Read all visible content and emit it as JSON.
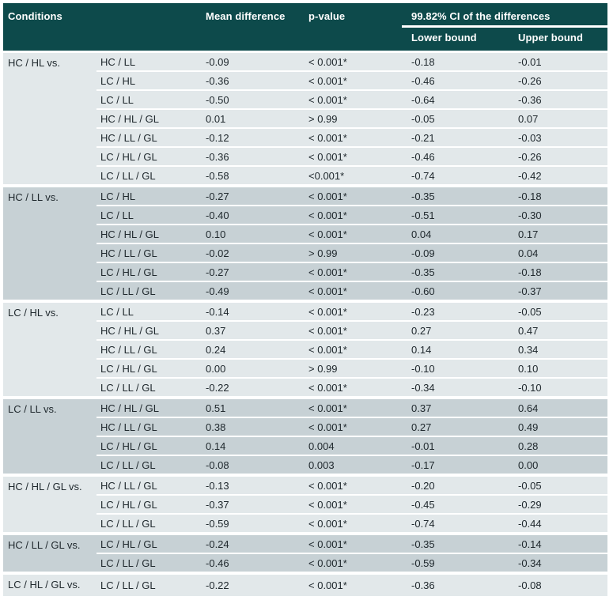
{
  "table": {
    "colors": {
      "header_bg": "#0d4a4b",
      "header_text": "#ffffff",
      "row_light": "#e2e8ea",
      "row_dark": "#c7d1d5",
      "body_text": "#20292e",
      "separator": "#ffffff"
    },
    "header": {
      "conditions": "Conditions",
      "mean_difference": "Mean difference",
      "p_value": "p-value",
      "ci_title": "99.82% CI of the differences",
      "lower_bound": "Lower bound",
      "upper_bound": "Upper bound"
    },
    "groups": [
      {
        "label": "HC / HL vs.",
        "rows": [
          {
            "condition": "HC / LL",
            "mean_difference": "-0.09",
            "p_value": "< 0.001*",
            "lower": "-0.18",
            "upper": "-0.01"
          },
          {
            "condition": "LC / HL",
            "mean_difference": "-0.36",
            "p_value": "< 0.001*",
            "lower": "-0.46",
            "upper": "-0.26"
          },
          {
            "condition": "LC / LL",
            "mean_difference": "-0.50",
            "p_value": "< 0.001*",
            "lower": "-0.64",
            "upper": "-0.36"
          },
          {
            "condition": "HC / HL / GL",
            "mean_difference": "0.01",
            "p_value": "> 0.99",
            "lower": "-0.05",
            "upper": "0.07"
          },
          {
            "condition": "HC / LL / GL",
            "mean_difference": "-0.12",
            "p_value": "< 0.001*",
            "lower": "-0.21",
            "upper": "-0.03"
          },
          {
            "condition": "LC / HL / GL",
            "mean_difference": "-0.36",
            "p_value": "< 0.001*",
            "lower": "-0.46",
            "upper": "-0.26"
          },
          {
            "condition": "LC / LL / GL",
            "mean_difference": "-0.58",
            "p_value": "<0.001*",
            "lower": "-0.74",
            "upper": "-0.42"
          }
        ]
      },
      {
        "label": "HC / LL vs.",
        "rows": [
          {
            "condition": "LC / HL",
            "mean_difference": "-0.27",
            "p_value": "< 0.001*",
            "lower": "-0.35",
            "upper": "-0.18"
          },
          {
            "condition": "LC / LL",
            "mean_difference": "-0.40",
            "p_value": "< 0.001*",
            "lower": "-0.51",
            "upper": "-0.30"
          },
          {
            "condition": "HC / HL / GL",
            "mean_difference": "0.10",
            "p_value": "< 0.001*",
            "lower": "0.04",
            "upper": "0.17"
          },
          {
            "condition": "HC / LL / GL",
            "mean_difference": "-0.02",
            "p_value": "> 0.99",
            "lower": "-0.09",
            "upper": "0.04"
          },
          {
            "condition": "LC / HL / GL",
            "mean_difference": "-0.27",
            "p_value": "< 0.001*",
            "lower": "-0.35",
            "upper": "-0.18"
          },
          {
            "condition": "LC / LL / GL",
            "mean_difference": "-0.49",
            "p_value": "< 0.001*",
            "lower": "-0.60",
            "upper": "-0.37"
          }
        ]
      },
      {
        "label": "LC / HL vs.",
        "rows": [
          {
            "condition": "LC / LL",
            "mean_difference": "-0.14",
            "p_value": "< 0.001*",
            "lower": "-0.23",
            "upper": "-0.05"
          },
          {
            "condition": "HC / HL / GL",
            "mean_difference": "0.37",
            "p_value": "< 0.001*",
            "lower": "0.27",
            "upper": "0.47"
          },
          {
            "condition": "HC / LL / GL",
            "mean_difference": "0.24",
            "p_value": "< 0.001*",
            "lower": "0.14",
            "upper": "0.34"
          },
          {
            "condition": "LC / HL / GL",
            "mean_difference": "0.00",
            "p_value": "> 0.99",
            "lower": "-0.10",
            "upper": "0.10"
          },
          {
            "condition": "LC / LL / GL",
            "mean_difference": "-0.22",
            "p_value": "< 0.001*",
            "lower": "-0.34",
            "upper": "-0.10"
          }
        ]
      },
      {
        "label": "LC / LL vs.",
        "rows": [
          {
            "condition": "HC / HL / GL",
            "mean_difference": "0.51",
            "p_value": "< 0.001*",
            "lower": "0.37",
            "upper": "0.64"
          },
          {
            "condition": "HC / LL / GL",
            "mean_difference": "0.38",
            "p_value": "< 0.001*",
            "lower": "0.27",
            "upper": "0.49"
          },
          {
            "condition": "LC / HL / GL",
            "mean_difference": "0.14",
            "p_value": "0.004",
            "lower": "-0.01",
            "upper": "0.28"
          },
          {
            "condition": "LC / LL / GL",
            "mean_difference": "-0.08",
            "p_value": "0.003",
            "lower": "-0.17",
            "upper": "0.00"
          }
        ]
      },
      {
        "label": "HC / HL / GL vs.",
        "rows": [
          {
            "condition": "HC / LL / GL",
            "mean_difference": "-0.13",
            "p_value": "< 0.001*",
            "lower": "-0.20",
            "upper": "-0.05"
          },
          {
            "condition": "LC / HL / GL",
            "mean_difference": "-0.37",
            "p_value": "< 0.001*",
            "lower": "-0.45",
            "upper": "-0.29"
          },
          {
            "condition": "LC / LL / GL",
            "mean_difference": "-0.59",
            "p_value": "< 0.001*",
            "lower": "-0.74",
            "upper": "-0.44"
          }
        ]
      },
      {
        "label": "HC / LL / GL vs.",
        "rows": [
          {
            "condition": "LC / HL / GL",
            "mean_difference": "-0.24",
            "p_value": "< 0.001*",
            "lower": "-0.35",
            "upper": "-0.14"
          },
          {
            "condition": "LC / LL / GL",
            "mean_difference": "-0.46",
            "p_value": "< 0.001*",
            "lower": "-0.59",
            "upper": "-0.34"
          }
        ]
      },
      {
        "label": "LC / HL / GL vs.",
        "rows": [
          {
            "condition": "LC / LL / GL",
            "mean_difference": "-0.22",
            "p_value": "< 0.001*",
            "lower": "-0.36",
            "upper": "-0.08"
          }
        ]
      }
    ]
  }
}
